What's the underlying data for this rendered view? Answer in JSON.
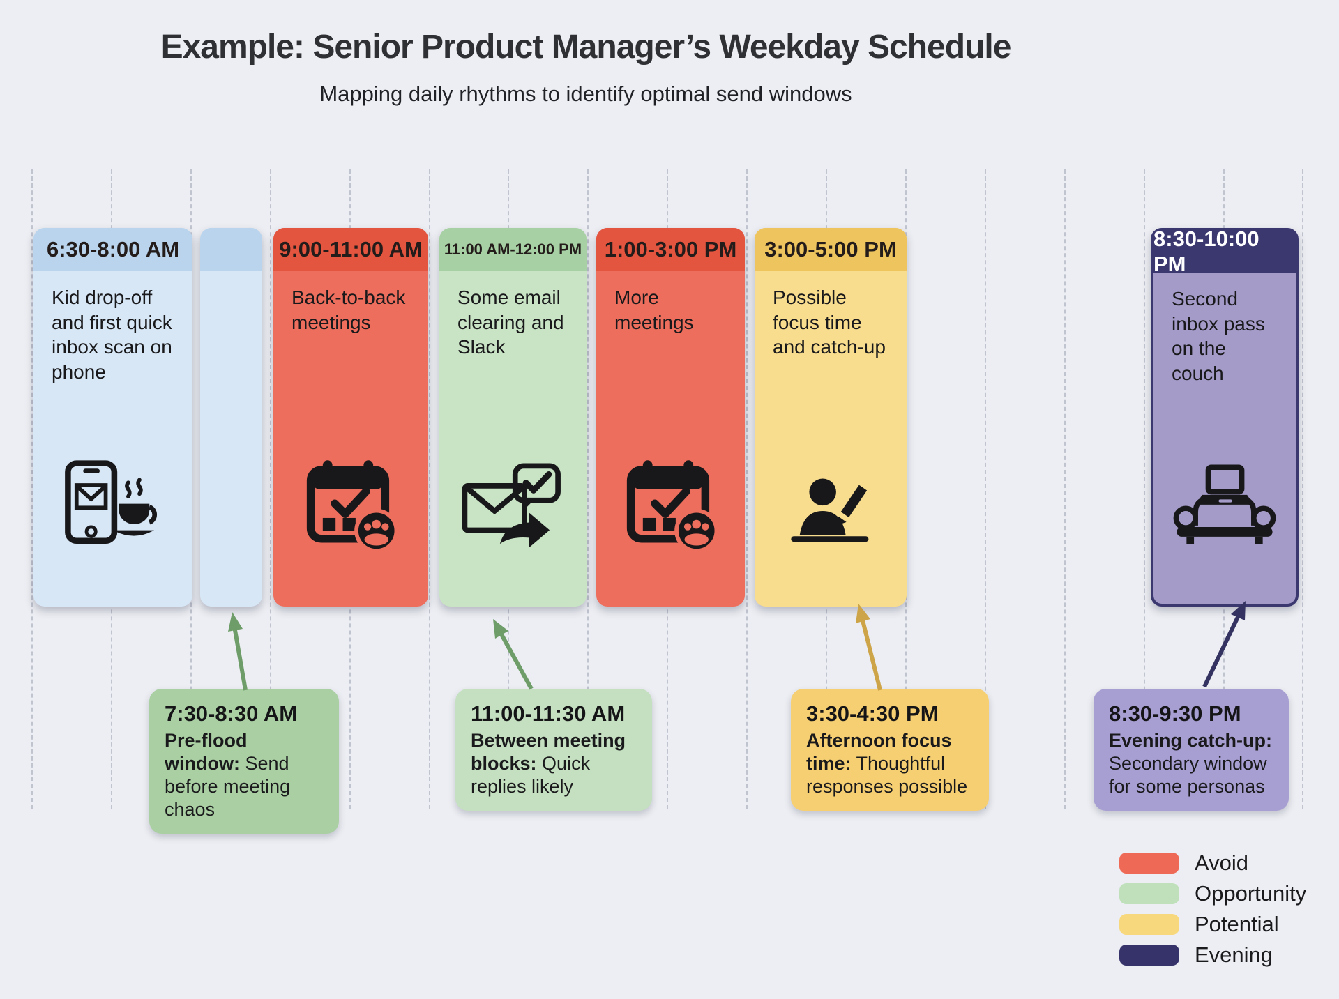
{
  "header": {
    "title": "Example: Senior Product Manager’s Weekday Schedule",
    "subtitle": "Mapping daily rhythms to identify optimal send windows"
  },
  "cards": [
    {
      "time": "6:30-8:00 AM",
      "desc": "Kid drop-off and first quick inbox scan on phone",
      "icon": "phone-email-coffee-icon",
      "category": "morning"
    },
    {
      "time": "",
      "desc": "",
      "icon": "",
      "category": "morning"
    },
    {
      "time": "9:00-11:00 AM",
      "desc": "Back-to-back meetings",
      "icon": "calendar-meetings-icon",
      "category": "avoid"
    },
    {
      "time": "11:00 AM-12:00 PM",
      "desc": "Some email clearing and Slack",
      "icon": "email-chat-check-icon",
      "category": "opportunity"
    },
    {
      "time": "1:00-3:00 PM",
      "desc": "More meetings",
      "icon": "calendar-meetings-icon",
      "category": "avoid"
    },
    {
      "time": "3:00-5:00 PM",
      "desc": "Possible focus time and catch-up",
      "icon": "person-writing-icon",
      "category": "potential"
    },
    {
      "time": "8:30-10:00 PM",
      "desc": "Second inbox pass on the couch",
      "icon": "couch-laptop-icon",
      "category": "evening"
    }
  ],
  "callouts": [
    {
      "time": "7:30-8:30 AM",
      "lead": "Pre-flood window:",
      "text": "Send before meeting chaos",
      "category": "opportunity"
    },
    {
      "time": "11:00-11:30 AM",
      "lead": "Between meeting blocks:",
      "text": "Quick replies likely",
      "category": "opportunity"
    },
    {
      "time": "3:30-4:30 PM",
      "lead": "Afternoon focus time:",
      "text": "Thoughtful responses possible",
      "category": "potential"
    },
    {
      "time": "8:30-9:30 PM",
      "lead": "Evening catch-up:",
      "text": "Secondary window for some personas",
      "category": "evening"
    }
  ],
  "legend": [
    {
      "label": "Avoid",
      "color": "#ee6a56"
    },
    {
      "label": "Opportunity",
      "color": "#bfe0ba"
    },
    {
      "label": "Potential",
      "color": "#f8d87d"
    },
    {
      "label": "Evening",
      "color": "#35336a"
    }
  ],
  "palette": {
    "background": "#eceef3",
    "avoid_header": "#e4553f",
    "avoid_body": "#ee6e5d",
    "opportunity_header": "#a7d0a4",
    "opportunity_body": "#c9e4c5",
    "potential_header": "#edc45d",
    "potential_body": "#f8dd8f",
    "evening_header": "#3b3870",
    "evening_body": "#a49bc8",
    "morning_header": "#b9d4ec",
    "morning_body": "#d7e7f6",
    "arrow_green": "#6f9d69",
    "arrow_gold": "#cda448",
    "arrow_navy": "#343260"
  }
}
